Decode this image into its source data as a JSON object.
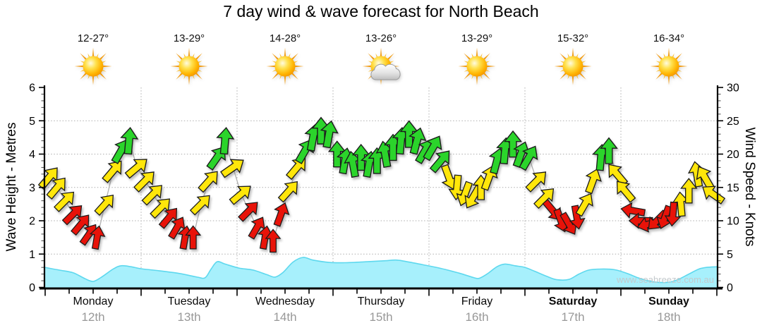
{
  "title": "7 day wind & wave forecast for North Beach",
  "watermark": "www.seabreeze.com.au",
  "days": [
    {
      "name": "Monday",
      "date": "12th",
      "temp_range": "12-27°",
      "icon": "sunny",
      "emphasis": false
    },
    {
      "name": "Tuesday",
      "date": "13th",
      "temp_range": "13-29°",
      "icon": "sunny",
      "emphasis": false
    },
    {
      "name": "Wednesday",
      "date": "14th",
      "temp_range": "14-28°",
      "icon": "sunny",
      "emphasis": false
    },
    {
      "name": "Thursday",
      "date": "15th",
      "temp_range": "13-26°",
      "icon": "partly-cloudy",
      "emphasis": false
    },
    {
      "name": "Friday",
      "date": "16th",
      "temp_range": "13-29°",
      "icon": "sunny",
      "emphasis": false
    },
    {
      "name": "Saturday",
      "date": "17th",
      "temp_range": "15-32°",
      "icon": "sunny",
      "emphasis": true
    },
    {
      "name": "Sunday",
      "date": "18th",
      "temp_range": "16-34°",
      "icon": "sunny",
      "emphasis": true
    }
  ],
  "axes": {
    "left": {
      "title": "Wave Height - Metres",
      "ticks": [
        0,
        1,
        2,
        3,
        4,
        5,
        6
      ],
      "max": 6
    },
    "right": {
      "title": "Wind Speed - Knots",
      "ticks": [
        0,
        5,
        10,
        15,
        20,
        25,
        30
      ],
      "max": 30
    },
    "x_days": 7,
    "grid": "dotted"
  },
  "chart_data": {
    "type": "line",
    "title": "7 day wind & wave forecast for North Beach",
    "x_range_hours": [
      0,
      168
    ],
    "series": [
      {
        "name": "Wind Speed",
        "unit": "knots",
        "style": "direction-arrows",
        "sample_interval_hours": 2,
        "first_sample_hour": 1,
        "knots": [
          16.5,
          15,
          13,
          11,
          9.5,
          8,
          7.5,
          12.5,
          17.5,
          20.5,
          22,
          18,
          16,
          14,
          12,
          10.5,
          9,
          7.5,
          7.5,
          12.5,
          16,
          19.5,
          22,
          18,
          14,
          11.5,
          9,
          7.5,
          7,
          11,
          14.5,
          18,
          20.5,
          22.5,
          23.5,
          23,
          20,
          19,
          18.5,
          19.5,
          18.5,
          19,
          20,
          21,
          22,
          23,
          22,
          20.5,
          21,
          19,
          16.5,
          15,
          14,
          13.5,
          15,
          16.5,
          19,
          20.5,
          21.5,
          20,
          19.5,
          16,
          13.5,
          11.5,
          10,
          9.5,
          10.5,
          12.5,
          16,
          19.5,
          20.5,
          17,
          14.5,
          11.5,
          10,
          9.5,
          10,
          10.5,
          11,
          12.5,
          14.5,
          17,
          16.5,
          14
        ],
        "direction_deg": [
          40,
          40,
          45,
          45,
          40,
          35,
          10,
          42,
          40,
          30,
          5,
          50,
          45,
          45,
          45,
          40,
          30,
          10,
          0,
          45,
          42,
          35,
          5,
          55,
          50,
          45,
          30,
          10,
          0,
          20,
          42,
          40,
          30,
          10,
          0,
          10,
          0,
          10,
          350,
          0,
          10,
          0,
          350,
          0,
          5,
          0,
          15,
          30,
          30,
          40,
          160,
          185,
          200,
          210,
          0,
          20,
          15,
          5,
          0,
          20,
          30,
          45,
          45,
          140,
          160,
          150,
          170,
          30,
          20,
          5,
          0,
          320,
          320,
          280,
          270,
          255,
          225,
          200,
          185,
          355,
          0,
          350,
          330,
          305
        ],
        "color_rule": {
          "red": "< 12 kn",
          "yellow": "12 - 18.5 kn",
          "green": ">= 18.5 kn"
        }
      },
      {
        "name": "Wave Height",
        "unit": "metres",
        "style": "filled-area",
        "points": [
          [
            0,
            0.6
          ],
          [
            3.5,
            0.52
          ],
          [
            7,
            0.44
          ],
          [
            10,
            0.26
          ],
          [
            12,
            0.18
          ],
          [
            14,
            0.3
          ],
          [
            17,
            0.55
          ],
          [
            19,
            0.65
          ],
          [
            21.5,
            0.62
          ],
          [
            24,
            0.56
          ],
          [
            28.5,
            0.5
          ],
          [
            33.5,
            0.42
          ],
          [
            38,
            0.31
          ],
          [
            40,
            0.29
          ],
          [
            41.5,
            0.55
          ],
          [
            43,
            0.77
          ],
          [
            45,
            0.7
          ],
          [
            48.5,
            0.58
          ],
          [
            52,
            0.52
          ],
          [
            55.5,
            0.38
          ],
          [
            57.5,
            0.31
          ],
          [
            59.5,
            0.45
          ],
          [
            62,
            0.76
          ],
          [
            64.5,
            0.9
          ],
          [
            67,
            0.82
          ],
          [
            71,
            0.75
          ],
          [
            75,
            0.74
          ],
          [
            80.5,
            0.77
          ],
          [
            85,
            0.8
          ],
          [
            88,
            0.82
          ],
          [
            91,
            0.76
          ],
          [
            94.5,
            0.68
          ],
          [
            99,
            0.57
          ],
          [
            103.5,
            0.43
          ],
          [
            107,
            0.3
          ],
          [
            108.5,
            0.27
          ],
          [
            110.5,
            0.4
          ],
          [
            113,
            0.62
          ],
          [
            115,
            0.7
          ],
          [
            117.5,
            0.65
          ],
          [
            120,
            0.6
          ],
          [
            122.5,
            0.48
          ],
          [
            125.5,
            0.33
          ],
          [
            128,
            0.23
          ],
          [
            131,
            0.24
          ],
          [
            133.5,
            0.4
          ],
          [
            136,
            0.52
          ],
          [
            139,
            0.55
          ],
          [
            142.5,
            0.53
          ],
          [
            146,
            0.4
          ],
          [
            148.5,
            0.28
          ],
          [
            152,
            0.17
          ],
          [
            155.5,
            0.15
          ],
          [
            158,
            0.22
          ],
          [
            161,
            0.4
          ],
          [
            163.5,
            0.55
          ],
          [
            165.5,
            0.6
          ],
          [
            168,
            0.62
          ]
        ]
      }
    ],
    "colors": {
      "arrow_red": "#e81309",
      "arrow_yellow": "#ffe60a",
      "arrow_green": "#2bd42b",
      "wave_fill": "#a7f0fc",
      "wave_edge": "#5ed8ee",
      "grid": "#adadad",
      "connector": "#b0b0b0"
    },
    "legend_position": "none"
  }
}
